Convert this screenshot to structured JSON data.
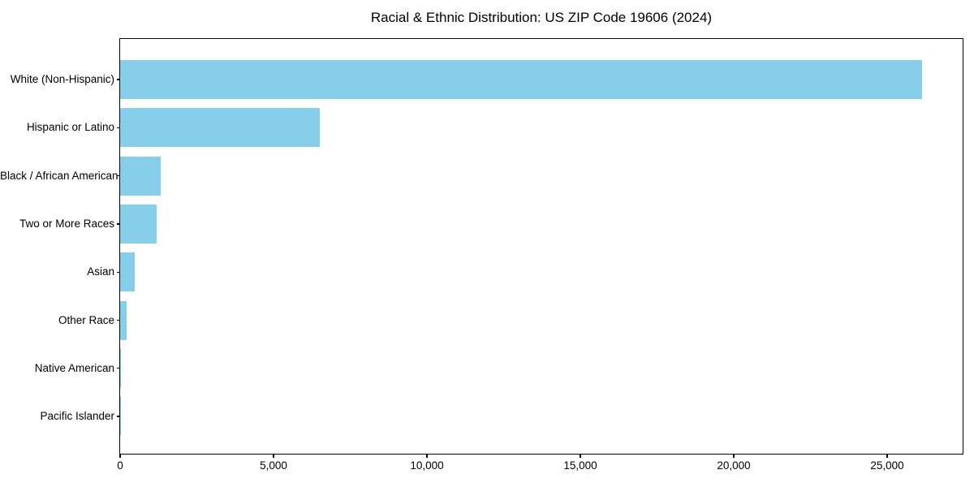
{
  "chart_data": {
    "type": "bar",
    "orientation": "horizontal",
    "title": "Racial & Ethnic Distribution: US ZIP Code 19606 (2024)",
    "categories": [
      "White (Non-Hispanic)",
      "Hispanic or Latino",
      "Black / African American",
      "Two or More Races",
      "Asian",
      "Other Race",
      "Native American",
      "Pacific Islander"
    ],
    "values": [
      26140,
      6510,
      1320,
      1190,
      480,
      200,
      20,
      5
    ],
    "xlabel": "",
    "ylabel": "",
    "xlim": [
      0,
      27460
    ],
    "xtick_values": [
      0,
      5000,
      10000,
      15000,
      20000,
      25000
    ],
    "xtick_labels": [
      "0",
      "5,000",
      "10,000",
      "15,000",
      "20,000",
      "25,000"
    ],
    "bar_color": "#87CEEB",
    "grid": false,
    "legend": null
  }
}
